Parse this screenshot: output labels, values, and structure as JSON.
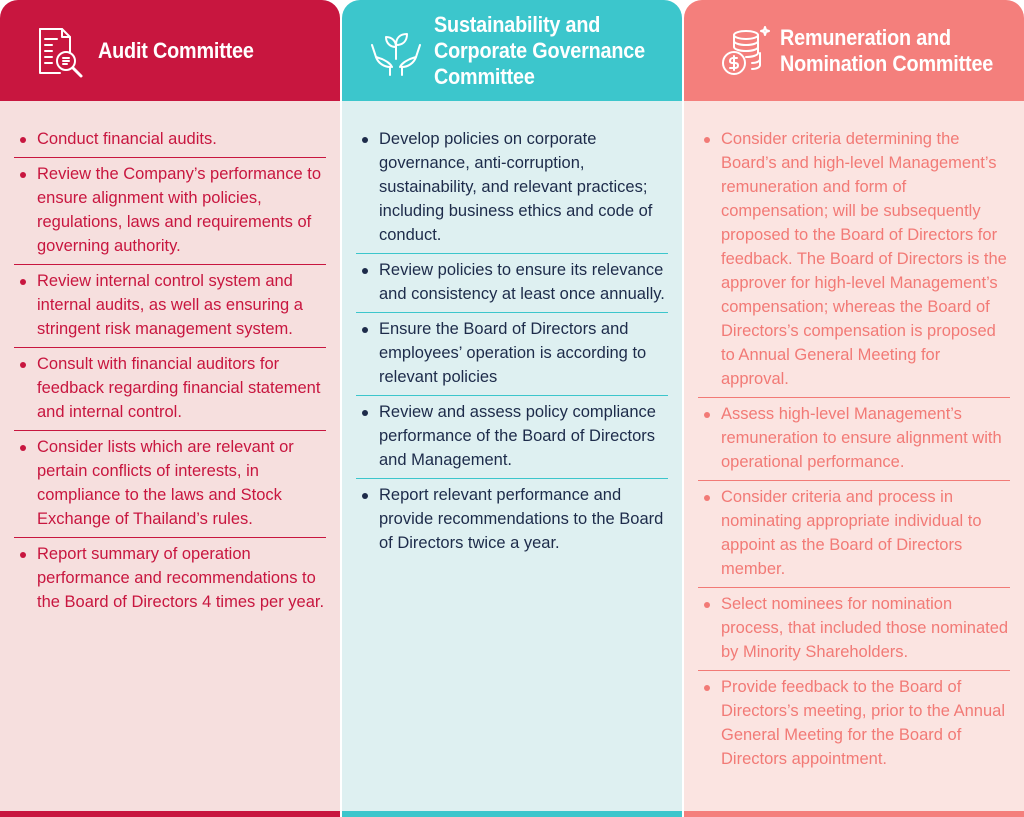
{
  "columns": [
    {
      "title": "Audit Committee",
      "icon": "document-magnifier-icon",
      "color": "#c8163f",
      "items": [
        "Conduct financial audits.",
        "Review the Company’s performance to ensure alignment with policies, regulations, laws and requirements of governing authority.",
        "Review internal control system and internal audits, as well as ensuring a stringent risk management system.",
        "Consult with financial auditors for feedback regarding financial statement and internal control.",
        "Consider lists which are relevant or pertain conflicts of interests, in compliance to the laws and Stock Exchange of Thailand’s rules.",
        "Report summary of operation performance and recommendations to the Board of Directors 4 times per year."
      ]
    },
    {
      "title": "Sustainability and Corporate Governance Committee",
      "icon": "hands-sprout-icon",
      "color": "#3cc6cc",
      "items": [
        "Develop policies on corporate governance, anti-corruption, sustainability, and relevant practices; including business ethics and code of conduct.",
        "Review policies to ensure its relevance and consistency at least once annually.",
        "Ensure the Board of Directors and employees’ operation is according to relevant policies",
        "Review and assess policy compliance performance of the Board of Directors and Management.",
        "Report relevant performance and provide recommendations to the Board of Directors twice a year."
      ]
    },
    {
      "title": "Remuneration and Nomination Committee",
      "icon": "coins-dollar-icon",
      "color": "#f47f7c",
      "items": [
        "Consider criteria determining the Board’s and high-level Management’s remuneration and form of compensation; will be subsequently proposed to the Board of Directors for feedback. The Board of Directors is the approver for high-level Management’s compensation; whereas the Board of Directors’s compensation is proposed to Annual General Meeting for approval.",
        "Assess high-level Management’s remuneration to ensure alignment with operational performance.",
        "Consider criteria and process in nominating appropriate individual to appoint as the Board of Directors member.",
        "Select nominees for nomination process, that included those nominated by Minority Shareholders.",
        "Provide feedback to the Board of Directors’s meeting, prior to the Annual General Meeting for the Board of Directors appointment."
      ]
    }
  ]
}
